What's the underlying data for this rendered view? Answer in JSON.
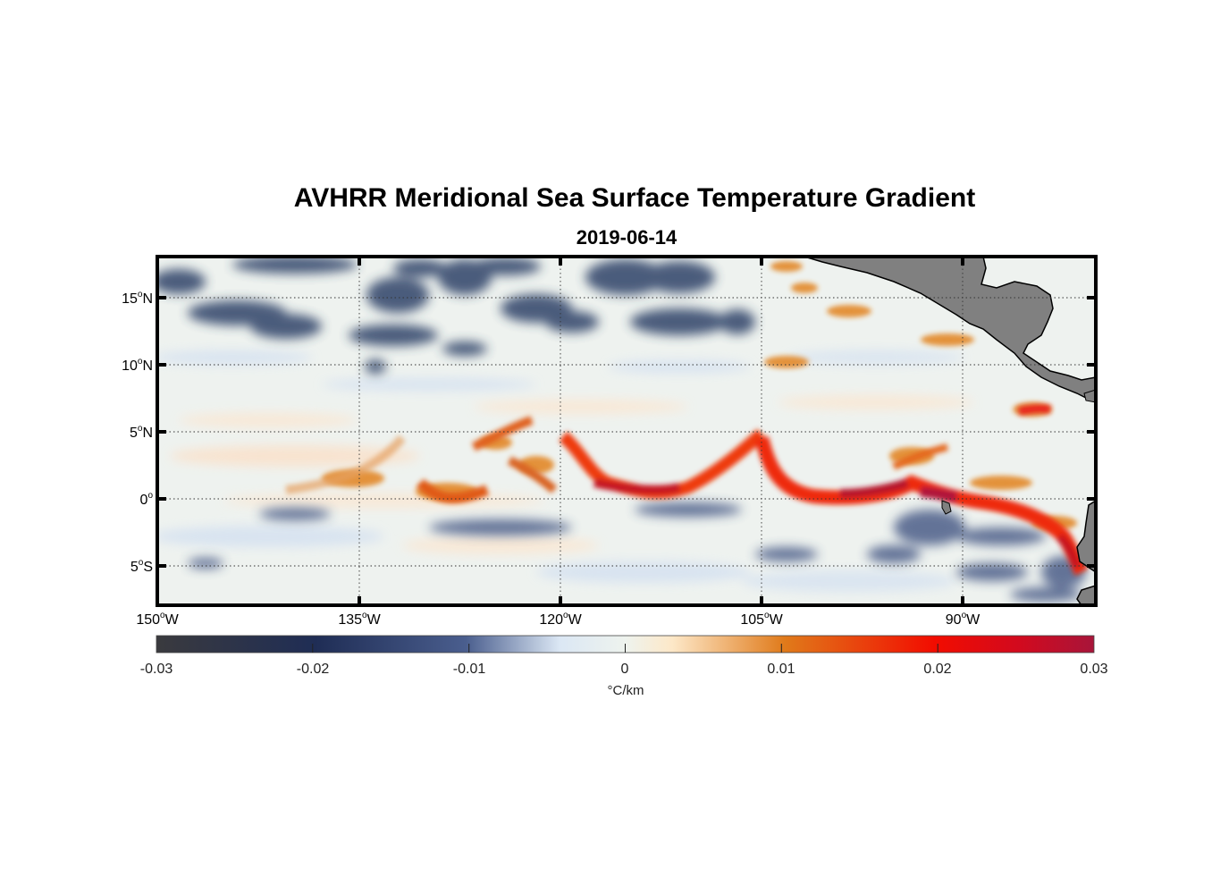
{
  "title": "AVHRR Meridional Sea Surface Temperature Gradient",
  "subtitle": "2019-06-14",
  "map": {
    "lat_ticks": [
      {
        "deg": "15",
        "hemi": "N"
      },
      {
        "deg": "10",
        "hemi": "N"
      },
      {
        "deg": "5",
        "hemi": "N"
      },
      {
        "deg": "0",
        "hemi": ""
      },
      {
        "deg": "5",
        "hemi": "S"
      }
    ],
    "lon_ticks": [
      {
        "deg": "150",
        "hemi": "W"
      },
      {
        "deg": "135",
        "hemi": "W"
      },
      {
        "deg": "120",
        "hemi": "W"
      },
      {
        "deg": "105",
        "hemi": "W"
      },
      {
        "deg": "90",
        "hemi": "W"
      }
    ],
    "extent": {
      "lon_min": -150,
      "lon_max": -80,
      "lat_min": -8,
      "lat_max": 18
    },
    "land_color": "#808080"
  },
  "colorbar": {
    "ticks": [
      "-0.03",
      "-0.02",
      "-0.01",
      "0",
      "0.01",
      "0.02",
      "0.03"
    ],
    "range": [
      -0.03,
      0.03
    ],
    "unit": "°C/km",
    "colors": [
      "#3a3a3e",
      "#1f2d55",
      "#4a5e8e",
      "#dbe7f4",
      "#eef3ee",
      "#fde8c8",
      "#e07a1a",
      "#f20c00",
      "#d20a1e",
      "#a8153a"
    ]
  }
}
